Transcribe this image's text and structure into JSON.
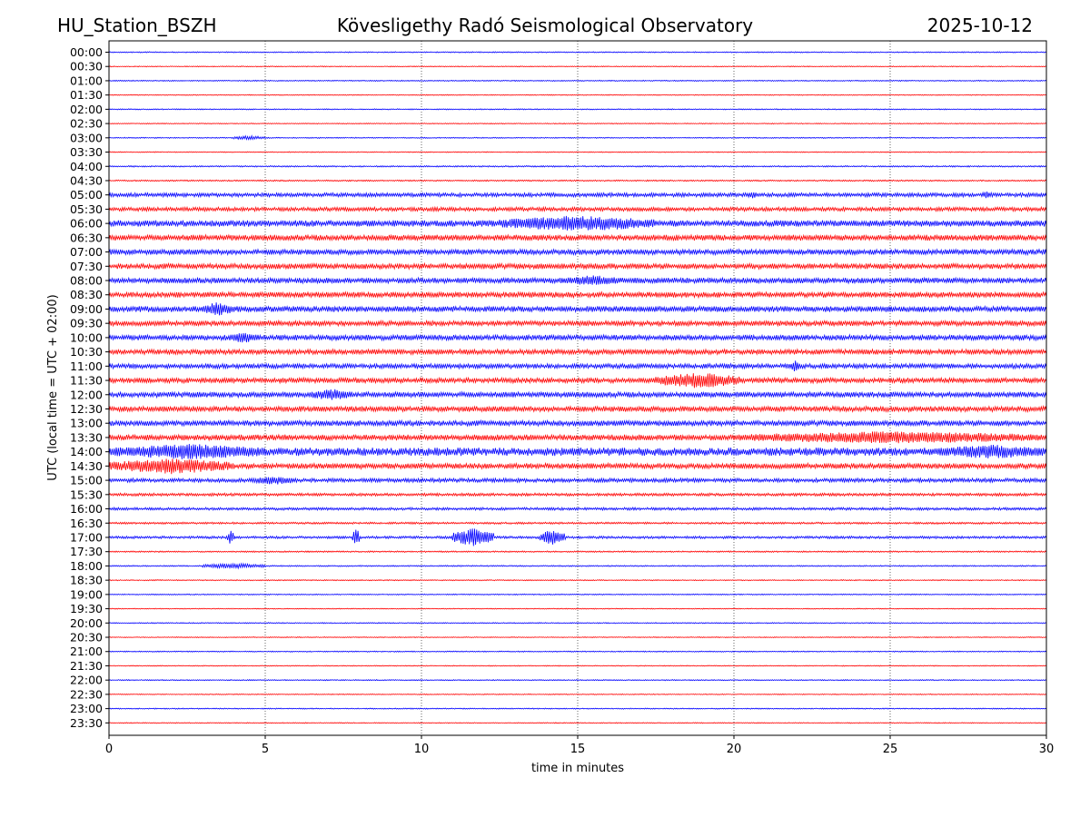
{
  "header": {
    "station": "HU_Station_BSZH",
    "observatory": "Kövesligethy Radó Seismological Observatory",
    "date": "2025-10-12"
  },
  "chart_data": {
    "type": "line",
    "title": "Kövesligethy Radó Seismological Observatory",
    "xlabel": "time in minutes",
    "ylabel": "UTC (local time = UTC + 02:00)",
    "xlim": [
      0,
      30
    ],
    "xticks": [
      0,
      5,
      10,
      15,
      20,
      25,
      30
    ],
    "grid": "vertical dotted lines at every 5 minutes",
    "row_labels": [
      "00:00",
      "00:30",
      "01:00",
      "01:30",
      "02:00",
      "02:30",
      "03:00",
      "03:30",
      "04:00",
      "04:30",
      "05:00",
      "05:30",
      "06:00",
      "06:30",
      "07:00",
      "07:30",
      "08:00",
      "08:30",
      "09:00",
      "09:30",
      "10:00",
      "10:30",
      "11:00",
      "11:30",
      "12:00",
      "12:30",
      "13:00",
      "13:30",
      "14:00",
      "14:30",
      "15:00",
      "15:30",
      "16:00",
      "16:30",
      "17:00",
      "17:30",
      "18:00",
      "18:30",
      "19:00",
      "19:30",
      "20:00",
      "20:30",
      "21:00",
      "21:30",
      "22:00",
      "22:30",
      "23:00",
      "23:30"
    ],
    "trace_colors": [
      "#0000ff",
      "#ff0000"
    ],
    "noise_level": [
      0.6,
      0.5,
      0.6,
      0.5,
      0.6,
      0.5,
      0.6,
      0.5,
      0.8,
      0.8,
      2.2,
      2.2,
      3.5,
      3.2,
      3.0,
      3.0,
      3.0,
      3.0,
      3.2,
      2.8,
      3.0,
      2.8,
      2.6,
      2.8,
      3.0,
      3.0,
      3.0,
      3.2,
      4.5,
      3.0,
      2.2,
      1.6,
      1.5,
      1.1,
      1.4,
      0.8,
      0.7,
      0.6,
      0.6,
      0.5,
      0.6,
      0.5,
      0.6,
      0.5,
      0.6,
      0.5,
      0.6,
      0.5
    ],
    "events": [
      {
        "row": "03:00",
        "start": 4.0,
        "end": 5.0,
        "amplitude": 2.5
      },
      {
        "row": "05:00",
        "start": 20.4,
        "end": 20.8,
        "amplitude": 4
      },
      {
        "row": "05:00",
        "start": 27.9,
        "end": 28.3,
        "amplitude": 4
      },
      {
        "row": "06:00",
        "start": 12.5,
        "end": 17.5,
        "amplitude": 9
      },
      {
        "row": "08:00",
        "start": 14.5,
        "end": 16.5,
        "amplitude": 6
      },
      {
        "row": "09:00",
        "start": 3.0,
        "end": 4.0,
        "amplitude": 8
      },
      {
        "row": "10:00",
        "start": 3.8,
        "end": 4.8,
        "amplitude": 6
      },
      {
        "row": "11:00",
        "start": 21.8,
        "end": 22.1,
        "amplitude": 7
      },
      {
        "row": "11:30",
        "start": 17.5,
        "end": 20.2,
        "amplitude": 9
      },
      {
        "row": "12:00",
        "start": 6.5,
        "end": 7.8,
        "amplitude": 7
      },
      {
        "row": "13:30",
        "start": 20.0,
        "end": 30.0,
        "amplitude": 7
      },
      {
        "row": "14:00",
        "start": 0.0,
        "end": 5.0,
        "amplitude": 9
      },
      {
        "row": "14:00",
        "start": 26.5,
        "end": 30.0,
        "amplitude": 8
      },
      {
        "row": "14:30",
        "start": 0.0,
        "end": 4.0,
        "amplitude": 9
      },
      {
        "row": "15:00",
        "start": 4.5,
        "end": 6.0,
        "amplitude": 5
      },
      {
        "row": "17:00",
        "start": 3.8,
        "end": 4.0,
        "amplitude": 9
      },
      {
        "row": "17:00",
        "start": 7.8,
        "end": 8.0,
        "amplitude": 11
      },
      {
        "row": "17:00",
        "start": 11.0,
        "end": 12.3,
        "amplitude": 10
      },
      {
        "row": "17:00",
        "start": 13.8,
        "end": 14.6,
        "amplitude": 9
      },
      {
        "row": "18:00",
        "start": 3.0,
        "end": 5.0,
        "amplitude": 3
      }
    ]
  }
}
